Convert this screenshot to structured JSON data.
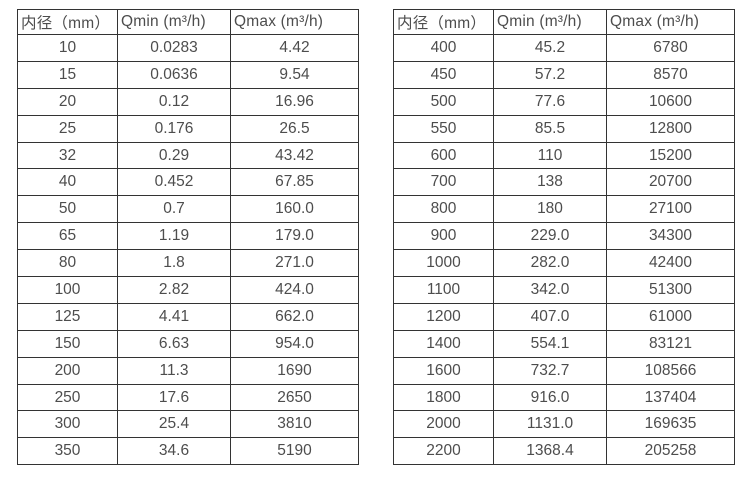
{
  "columns": [
    "内径（mm）",
    "Qmin (m³/h)",
    "Qmax (m³/h)"
  ],
  "tables": [
    {
      "rows": [
        [
          "10",
          "0.0283",
          "4.42"
        ],
        [
          "15",
          "0.0636",
          "9.54"
        ],
        [
          "20",
          "0.12",
          "16.96"
        ],
        [
          "25",
          "0.176",
          "26.5"
        ],
        [
          "32",
          "0.29",
          "43.42"
        ],
        [
          "40",
          "0.452",
          "67.85"
        ],
        [
          "50",
          "0.7",
          "160.0"
        ],
        [
          "65",
          "1.19",
          "179.0"
        ],
        [
          "80",
          "1.8",
          "271.0"
        ],
        [
          "100",
          "2.82",
          "424.0"
        ],
        [
          "125",
          "4.41",
          "662.0"
        ],
        [
          "150",
          "6.63",
          "954.0"
        ],
        [
          "200",
          "11.3",
          "1690"
        ],
        [
          "250",
          "17.6",
          "2650"
        ],
        [
          "300",
          "25.4",
          "3810"
        ],
        [
          "350",
          "34.6",
          "5190"
        ]
      ]
    },
    {
      "rows": [
        [
          "400",
          "45.2",
          "6780"
        ],
        [
          "450",
          "57.2",
          "8570"
        ],
        [
          "500",
          "77.6",
          "10600"
        ],
        [
          "550",
          "85.5",
          "12800"
        ],
        [
          "600",
          "110",
          "15200"
        ],
        [
          "700",
          "138",
          "20700"
        ],
        [
          "800",
          "180",
          "27100"
        ],
        [
          "900",
          "229.0",
          "34300"
        ],
        [
          "1000",
          "282.0",
          "42400"
        ],
        [
          "1100",
          "342.0",
          "51300"
        ],
        [
          "1200",
          "407.0",
          "61000"
        ],
        [
          "1400",
          "554.1",
          "83121"
        ],
        [
          "1600",
          "732.7",
          "108566"
        ],
        [
          "1800",
          "916.0",
          "137404"
        ],
        [
          "2000",
          "1131.0",
          "169635"
        ],
        [
          "2200",
          "1368.4",
          "205258"
        ]
      ]
    }
  ],
  "colors": {
    "border": "#333333",
    "text": "#4d4d4d",
    "background": "#ffffff"
  }
}
